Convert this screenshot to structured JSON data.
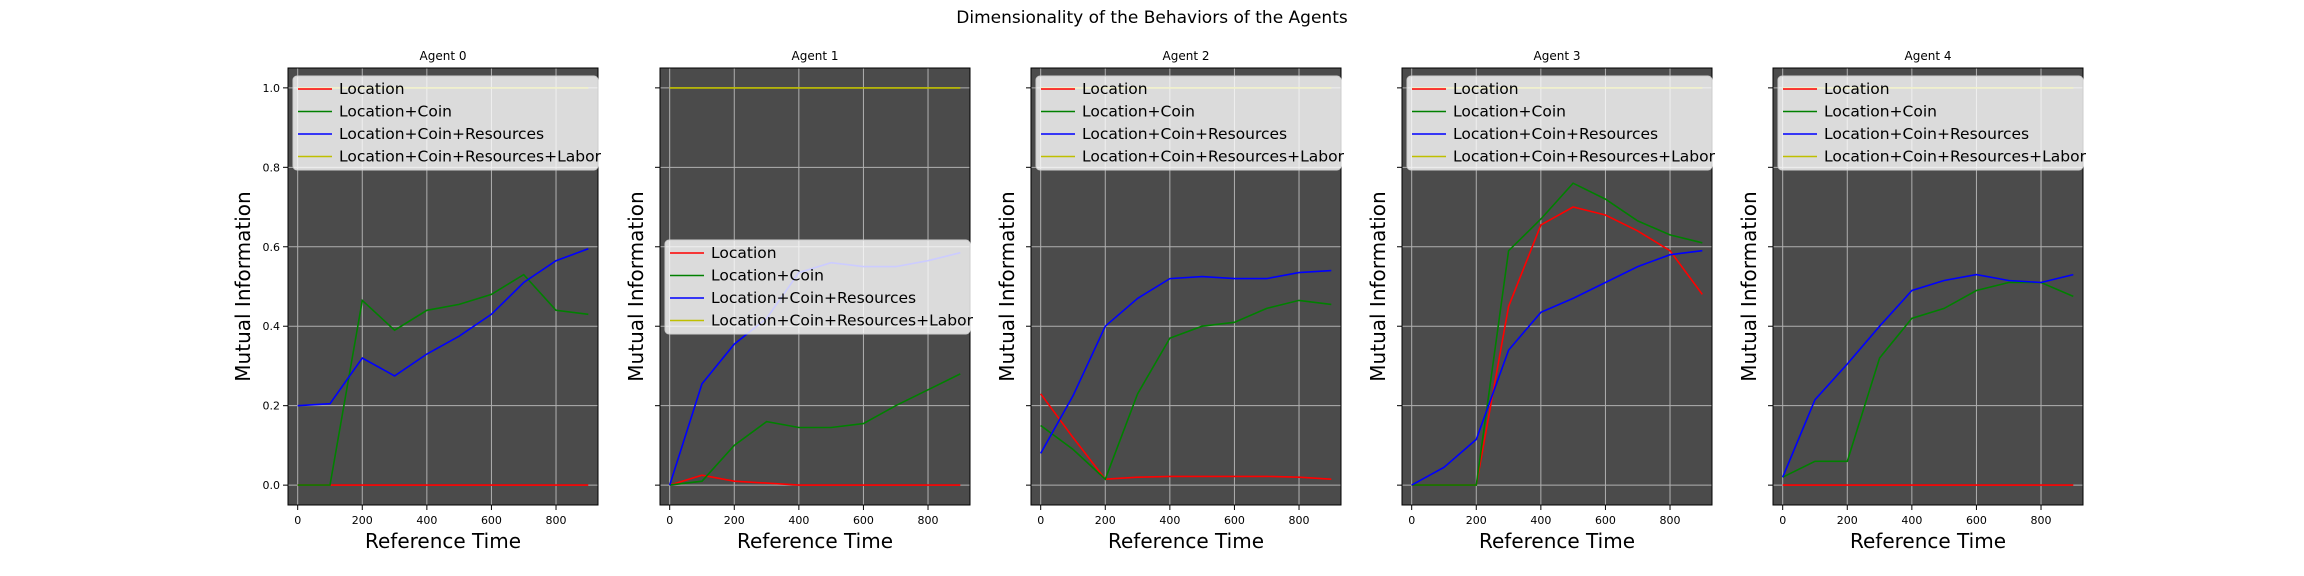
{
  "figure": {
    "suptitle": "Dimensionality of the Behaviors of the Agents"
  },
  "colors": {
    "panel_bg": "#4b4b4b",
    "grid": "#b0b0b0",
    "Location": "#ff0000",
    "Location+Coin": "#008000",
    "Location+Coin+Resources": "#0000ff",
    "Location+Coin+Resources+Labor": "#bfbf00"
  },
  "chart_data": [
    {
      "type": "line",
      "title": "Agent 0",
      "xlabel": "Reference Time",
      "ylabel": "Mutual Information",
      "xlim": [
        -30,
        930
      ],
      "ylim": [
        -0.05,
        1.05
      ],
      "xticks": [
        0,
        200,
        400,
        600,
        800
      ],
      "yticks": [
        0.0,
        0.2,
        0.4,
        0.6,
        0.8,
        1.0
      ],
      "show_ytick_labels": true,
      "grid": true,
      "legend": "top-left",
      "x": [
        0,
        100,
        200,
        300,
        400,
        500,
        600,
        700,
        800,
        900
      ],
      "series": [
        {
          "name": "Location",
          "values": [
            0.0,
            0.0,
            0.0,
            0.0,
            0.0,
            0.0,
            0.0,
            0.0,
            0.0,
            0.0
          ]
        },
        {
          "name": "Location+Coin",
          "values": [
            0.0,
            0.0,
            0.465,
            0.39,
            0.44,
            0.455,
            0.48,
            0.53,
            0.44,
            0.43
          ]
        },
        {
          "name": "Location+Coin+Resources",
          "values": [
            0.2,
            0.205,
            0.32,
            0.275,
            0.33,
            0.375,
            0.43,
            0.51,
            0.565,
            0.595
          ]
        },
        {
          "name": "Location+Coin+Resources+Labor",
          "values": [
            1.0,
            1.0,
            1.0,
            1.0,
            1.0,
            1.0,
            1.0,
            1.0,
            1.0,
            1.0
          ]
        }
      ]
    },
    {
      "type": "line",
      "title": "Agent 1",
      "xlabel": "Reference Time",
      "ylabel": "Mutual Information",
      "xlim": [
        -30,
        930
      ],
      "ylim": [
        -0.05,
        1.05
      ],
      "xticks": [
        0,
        200,
        400,
        600,
        800
      ],
      "yticks": [
        0.0,
        0.2,
        0.4,
        0.6,
        0.8,
        1.0
      ],
      "show_ytick_labels": false,
      "grid": true,
      "legend": "center-left",
      "x": [
        0,
        100,
        200,
        300,
        400,
        500,
        600,
        700,
        800,
        900
      ],
      "series": [
        {
          "name": "Location",
          "values": [
            0.0,
            0.025,
            0.01,
            0.005,
            0.0,
            0.0,
            0.0,
            0.0,
            0.0,
            0.0
          ]
        },
        {
          "name": "Location+Coin",
          "values": [
            0.0,
            0.01,
            0.1,
            0.16,
            0.145,
            0.145,
            0.155,
            0.2,
            0.24,
            0.28
          ]
        },
        {
          "name": "Location+Coin+Resources",
          "values": [
            0.0,
            0.255,
            0.355,
            0.42,
            0.535,
            0.56,
            0.55,
            0.55,
            0.565,
            0.585
          ]
        },
        {
          "name": "Location+Coin+Resources+Labor",
          "values": [
            1.0,
            1.0,
            1.0,
            1.0,
            1.0,
            1.0,
            1.0,
            1.0,
            1.0,
            1.0
          ]
        }
      ]
    },
    {
      "type": "line",
      "title": "Agent 2",
      "xlabel": "Reference Time",
      "ylabel": "Mutual Information",
      "xlim": [
        -30,
        930
      ],
      "ylim": [
        -0.05,
        1.05
      ],
      "xticks": [
        0,
        200,
        400,
        600,
        800
      ],
      "yticks": [
        0.0,
        0.2,
        0.4,
        0.6,
        0.8,
        1.0
      ],
      "show_ytick_labels": false,
      "grid": true,
      "legend": "top-left",
      "x": [
        0,
        100,
        200,
        300,
        400,
        500,
        600,
        700,
        800,
        900
      ],
      "series": [
        {
          "name": "Location",
          "values": [
            0.23,
            0.12,
            0.015,
            0.02,
            0.022,
            0.022,
            0.022,
            0.022,
            0.02,
            0.015
          ]
        },
        {
          "name": "Location+Coin",
          "values": [
            0.15,
            0.09,
            0.015,
            0.23,
            0.37,
            0.4,
            0.41,
            0.445,
            0.465,
            0.455
          ]
        },
        {
          "name": "Location+Coin+Resources",
          "values": [
            0.08,
            0.225,
            0.4,
            0.47,
            0.52,
            0.525,
            0.52,
            0.52,
            0.535,
            0.54
          ]
        },
        {
          "name": "Location+Coin+Resources+Labor",
          "values": [
            1.0,
            1.0,
            1.0,
            1.0,
            1.0,
            1.0,
            1.0,
            1.0,
            1.0,
            1.0
          ]
        }
      ]
    },
    {
      "type": "line",
      "title": "Agent 3",
      "xlabel": "Reference Time",
      "ylabel": "Mutual Information",
      "xlim": [
        -30,
        930
      ],
      "ylim": [
        -0.05,
        1.05
      ],
      "xticks": [
        0,
        200,
        400,
        600,
        800
      ],
      "yticks": [
        0.0,
        0.2,
        0.4,
        0.6,
        0.8,
        1.0
      ],
      "show_ytick_labels": false,
      "grid": true,
      "legend": "top-left",
      "x": [
        0,
        100,
        200,
        300,
        400,
        500,
        600,
        700,
        800,
        900
      ],
      "series": [
        {
          "name": "Location",
          "values": [
            0.0,
            0.0,
            0.0,
            0.45,
            0.655,
            0.7,
            0.68,
            0.64,
            0.59,
            0.48
          ]
        },
        {
          "name": "Location+Coin",
          "values": [
            0.0,
            0.0,
            0.0,
            0.59,
            0.67,
            0.76,
            0.72,
            0.665,
            0.63,
            0.61
          ]
        },
        {
          "name": "Location+Coin+Resources",
          "values": [
            0.0,
            0.045,
            0.115,
            0.34,
            0.435,
            0.47,
            0.51,
            0.55,
            0.58,
            0.59
          ]
        },
        {
          "name": "Location+Coin+Resources+Labor",
          "values": [
            1.0,
            1.0,
            1.0,
            1.0,
            1.0,
            1.0,
            1.0,
            1.0,
            1.0,
            1.0
          ]
        }
      ]
    },
    {
      "type": "line",
      "title": "Agent 4",
      "xlabel": "Reference Time",
      "ylabel": "Mutual Information",
      "xlim": [
        -30,
        930
      ],
      "ylim": [
        -0.05,
        1.05
      ],
      "xticks": [
        0,
        200,
        400,
        600,
        800
      ],
      "yticks": [
        0.0,
        0.2,
        0.4,
        0.6,
        0.8,
        1.0
      ],
      "show_ytick_labels": false,
      "grid": true,
      "legend": "top-left",
      "x": [
        0,
        100,
        200,
        300,
        400,
        500,
        600,
        700,
        800,
        900
      ],
      "series": [
        {
          "name": "Location",
          "values": [
            0.0,
            0.0,
            0.0,
            0.0,
            0.0,
            0.0,
            0.0,
            0.0,
            0.0,
            0.0
          ]
        },
        {
          "name": "Location+Coin",
          "values": [
            0.02,
            0.06,
            0.06,
            0.32,
            0.42,
            0.445,
            0.49,
            0.51,
            0.51,
            0.475
          ]
        },
        {
          "name": "Location+Coin+Resources",
          "values": [
            0.02,
            0.215,
            0.305,
            0.4,
            0.49,
            0.515,
            0.53,
            0.515,
            0.51,
            0.53
          ]
        },
        {
          "name": "Location+Coin+Resources+Labor",
          "values": [
            1.0,
            1.0,
            1.0,
            1.0,
            1.0,
            1.0,
            1.0,
            1.0,
            1.0,
            1.0
          ]
        }
      ]
    }
  ]
}
